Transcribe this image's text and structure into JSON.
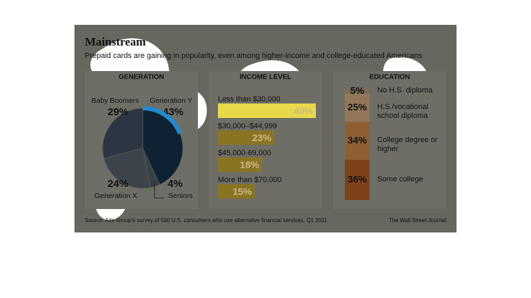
{
  "title": "Mainstream",
  "subtitle": "Prepaid cards are gaining in popularity, even among higher-income and college-educated Americans",
  "source": "Source: Aite Group's survey of 500 U.S. consumers who use alternative financial services, Q1 2011",
  "credit": "The Wall Street Journal",
  "chart_data": [
    {
      "type": "pie",
      "title": "GENERATION",
      "categories": [
        "Generation Y",
        "Seniors",
        "Generation X",
        "Baby Boomers"
      ],
      "values": [
        43,
        4,
        24,
        29
      ],
      "value_labels": [
        "43%",
        "4%",
        "24%",
        "29%"
      ],
      "colors": [
        "#0f2233",
        "#3a4048",
        "#3d434a",
        "#2b3642"
      ]
    },
    {
      "type": "bar",
      "title": "INCOME LEVEL",
      "categories": [
        "Less than $30,000",
        "$30,000–$44,999",
        "$45,000-69,000",
        "More than $70,000"
      ],
      "values": [
        40,
        23,
        18,
        15
      ],
      "value_labels": [
        "40%",
        "23%",
        "18%",
        "15%"
      ],
      "colors": [
        "#e8d94a",
        "#8a7424",
        "#8a7424",
        "#8a7424"
      ]
    },
    {
      "type": "stacked-column",
      "title": "EDUCATION",
      "categories": [
        "No H.S. diploma",
        "H.S./vocational school diploma",
        "College degree or higher",
        "Some college"
      ],
      "values": [
        5,
        25,
        34,
        36
      ],
      "value_labels": [
        "5%",
        "25%",
        "34%",
        "36%"
      ],
      "colors": [
        "#7d6c58",
        "#94775a",
        "#8f6034",
        "#7e421a"
      ]
    }
  ]
}
